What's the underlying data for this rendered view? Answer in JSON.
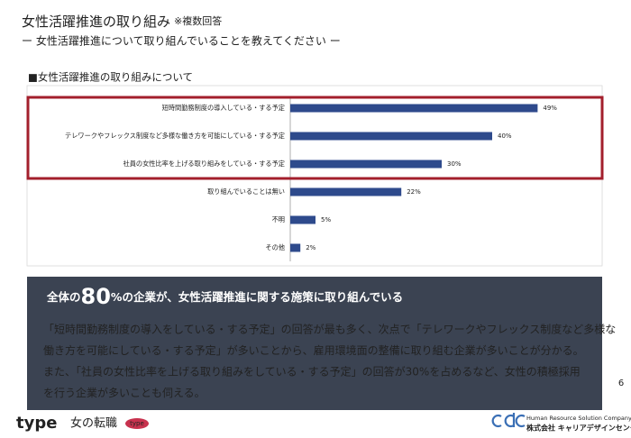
{
  "header": {
    "title": "女性活躍推進の取り組み",
    "note": "※複数回答",
    "subtitle": "ー 女性活躍推進について取り組んでいることを教えてください ー"
  },
  "chart_data": {
    "type": "bar",
    "orientation": "horizontal",
    "title": "■女性活躍推進の取り組みについて",
    "categories": [
      "短時間勤務制度の導入している・する予定",
      "テレワークやフレックス制度など多様な働き方を可能にしている・する予定",
      "社員の女性比率を上げる取り組みをしている・する予定",
      "取り組んでいることは無い",
      "不明",
      "その他"
    ],
    "values": [
      49,
      40,
      30,
      22,
      5,
      2
    ],
    "value_labels": [
      "49%",
      "40%",
      "30%",
      "22%",
      "5%",
      "2%"
    ],
    "color": "#2e4a8c"
  },
  "summary": {
    "lead": "全体の",
    "figure": "80",
    "rest": "%の企業が、女性活躍推進に関する施策に取り組んでいる",
    "lines": [
      "「短時間勤務制度の導入をしている・する予定」の回答が最も多く、次点で「テレワークやフレックス制度など多様な",
      "働き方を可能にしている・する予定」が多いことから、雇用環境面の整備に取り組む企業が多いことが分かる。",
      "また、「社員の女性比率を上げる取り組みをしている・する予定」の回答が30%を占めるなど、女性の積極採用",
      "を行う企業が多いことも伺える。"
    ]
  },
  "page_number": "6",
  "footer": {
    "brand": "type",
    "service": "女の転職",
    "badge": "type",
    "company_tagline": "Human Resource Solution Company",
    "company_name": "株式会社 キャリアデザインセンター"
  }
}
